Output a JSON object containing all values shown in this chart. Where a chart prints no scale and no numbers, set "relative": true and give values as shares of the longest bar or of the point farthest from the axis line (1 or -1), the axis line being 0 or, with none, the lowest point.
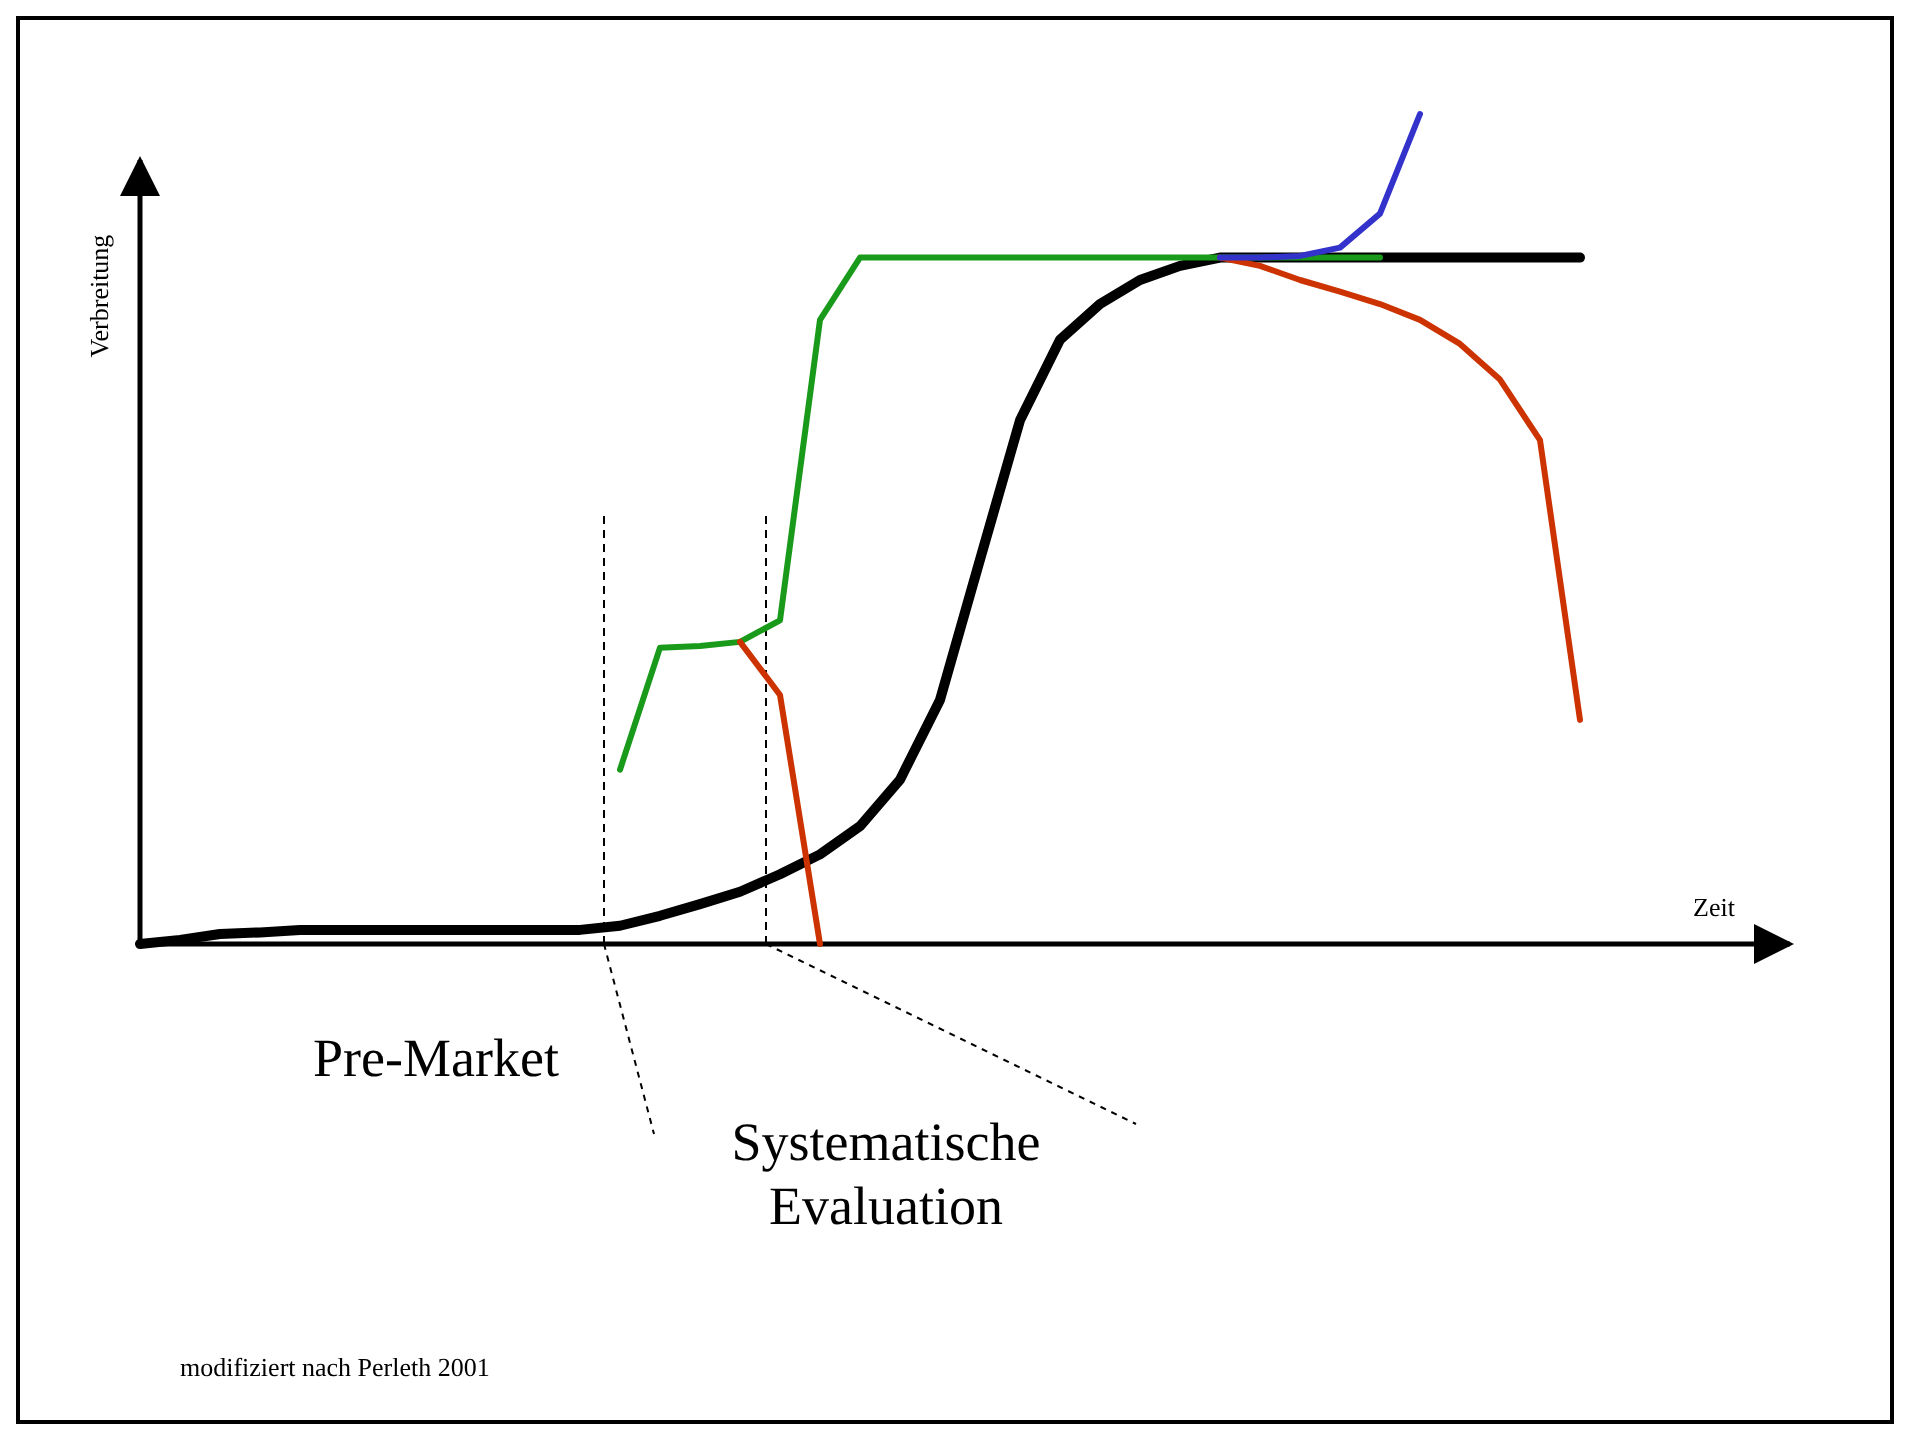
{
  "chart_data": {
    "type": "line",
    "relative": true,
    "xlabel": "Zeit",
    "ylabel": "Verbreitung",
    "marker": "none",
    "line_style": "solid",
    "categories": [
      null,
      null,
      null,
      null,
      null,
      null,
      null,
      null,
      null,
      null,
      null,
      null,
      null,
      null,
      null,
      null,
      null,
      null,
      null,
      null,
      null,
      null,
      null,
      null,
      null,
      null,
      null,
      null,
      null,
      null,
      null,
      null,
      null,
      null,
      null,
      null,
      null,
      null,
      null,
      null,
      null
    ],
    "series": [
      {
        "color": "#000000",
        "values": [
          0,
          0.005,
          0.012,
          0.014,
          0.017,
          0.017,
          0.017,
          0.017,
          0.017,
          0.017,
          0.017,
          0.017,
          0.022,
          0.034,
          0.048,
          0.063,
          0.084,
          0.108,
          0.142,
          0.198,
          0.294,
          0.463,
          0.631,
          0.728,
          0.771,
          0.8,
          0.817,
          0.827,
          0.827,
          0.827,
          0.827,
          0.827,
          0.827,
          0.827,
          0.827,
          0.827,
          0.827,
          null,
          null,
          null,
          null
        ]
      },
      {
        "color": "#1a9a1a",
        "values": [
          null,
          null,
          null,
          null,
          null,
          null,
          null,
          null,
          null,
          null,
          null,
          null,
          0.21,
          0.357,
          0.359,
          0.364,
          0.39,
          0.752,
          0.827,
          0.827,
          0.827,
          0.827,
          0.827,
          0.827,
          0.827,
          0.827,
          0.827,
          0.827,
          0.827,
          0.827,
          0.827,
          0.827,
          null,
          null,
          null,
          null,
          null,
          null,
          null,
          null,
          null
        ]
      },
      {
        "color": "#cc3300",
        "values": [
          null,
          null,
          null,
          null,
          null,
          null,
          null,
          null,
          null,
          null,
          null,
          null,
          null,
          null,
          null,
          0.364,
          0.3,
          0,
          null,
          null,
          null,
          null,
          null,
          null,
          null,
          null,
          null,
          null,
          null,
          null,
          null,
          null,
          null,
          null,
          null,
          null,
          null,
          null,
          null,
          null,
          null
        ]
      },
      {
        "color": "#cc3300",
        "values": [
          null,
          null,
          null,
          null,
          null,
          null,
          null,
          null,
          null,
          null,
          null,
          null,
          null,
          null,
          null,
          null,
          null,
          null,
          null,
          null,
          null,
          null,
          null,
          null,
          null,
          null,
          null,
          0.827,
          0.817,
          0.8,
          0.786,
          0.771,
          0.752,
          0.723,
          0.68,
          0.607,
          0.27,
          null,
          null,
          null,
          null
        ]
      },
      {
        "color": "#3333cc",
        "values": [
          null,
          null,
          null,
          null,
          null,
          null,
          null,
          null,
          null,
          null,
          null,
          null,
          null,
          null,
          null,
          null,
          null,
          null,
          null,
          null,
          null,
          null,
          null,
          null,
          null,
          null,
          null,
          0.827,
          0.827,
          0.829,
          0.839,
          0.88,
          1,
          null,
          null,
          null,
          null,
          null,
          null,
          null,
          null
        ]
      }
    ],
    "annotations": [
      "Pre-Market",
      "Systematische Evaluation",
      "modifiziert nach Perleth 2001"
    ]
  }
}
